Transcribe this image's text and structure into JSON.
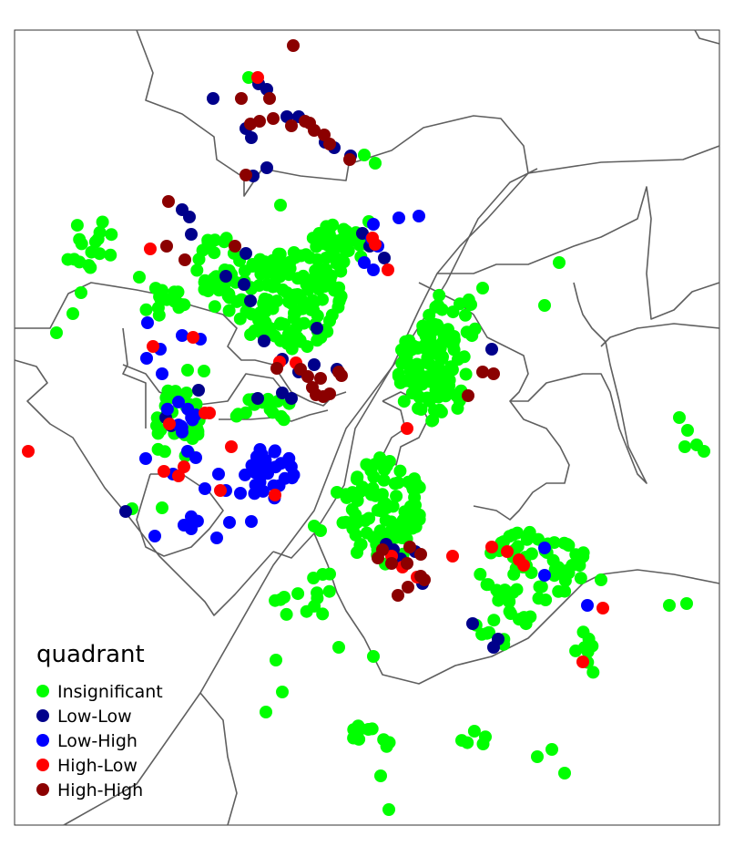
{
  "legend": {
    "title": "quadrant",
    "items": [
      {
        "label": "Insignificant",
        "color": "#00ff00"
      },
      {
        "label": "Low-Low",
        "color": "#00008b"
      },
      {
        "label": "Low-High",
        "color": "#0000ff"
      },
      {
        "label": "High-Low",
        "color": "#ff0000"
      },
      {
        "label": "High-High",
        "color": "#8b0000"
      }
    ]
  },
  "colors": {
    "Insignificant": "#00ff00",
    "Low-Low": "#00008b",
    "Low-High": "#0000ff",
    "High-Low": "#ff0000",
    "High-High": "#8b0000",
    "boundary": "#5f5f5f"
  }
}
